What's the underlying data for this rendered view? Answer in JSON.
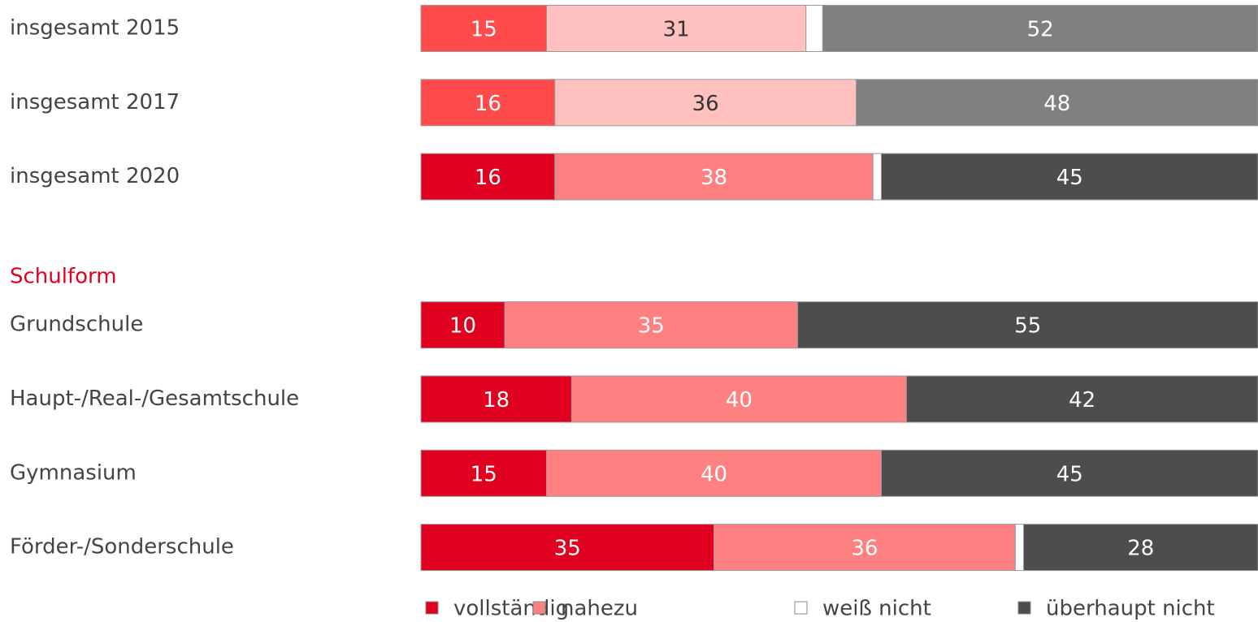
{
  "chart_data": {
    "type": "stacked-bar",
    "orientation": "horizontal",
    "group_label": "Schulform",
    "categories": [
      "insgesamt 2015",
      "insgesamt 2017",
      "insgesamt 2020",
      "Grundschule",
      "Haupt-/Real-/Gesamtschule",
      "Gymnasium",
      "Förder-/Sonderschule"
    ],
    "xlim": [
      0,
      100
    ],
    "legend": "bottom",
    "series": [
      {
        "name": "vollständig",
        "color": "#e0001f",
        "values": [
          15,
          16,
          16,
          10,
          18,
          15,
          35
        ],
        "colors": [
          "#ff4b4b",
          "#ff4b4b",
          "#e0001f",
          "#e0001f",
          "#e0001f",
          "#e0001f",
          "#e0001f"
        ],
        "labeled": true
      },
      {
        "name": "nahezu",
        "color": "#ff8080",
        "values": [
          31,
          36,
          38,
          35,
          40,
          40,
          36
        ],
        "colors": [
          "#ffc0c0",
          "#ffc0c0",
          "#ff8080",
          "#ff8080",
          "#ff8080",
          "#ff8080",
          "#ff8080"
        ],
        "labeled": true
      },
      {
        "name": "weiß nicht",
        "color": "#ffffff",
        "values": [
          2,
          0,
          1,
          0,
          0,
          0,
          1
        ],
        "colors": [
          "#ffffff",
          "#ffffff",
          "#ffffff",
          "#ffffff",
          "#ffffff",
          "#ffffff",
          "#ffffff"
        ],
        "labeled": false
      },
      {
        "name": "überhaupt nicht",
        "color": "#4d4d4d",
        "values": [
          52,
          48,
          45,
          55,
          42,
          45,
          28
        ],
        "colors": [
          "#808080",
          "#808080",
          "#4d4d4d",
          "#4d4d4d",
          "#4d4d4d",
          "#4d4d4d",
          "#4d4d4d"
        ],
        "labeled": true
      }
    ]
  }
}
